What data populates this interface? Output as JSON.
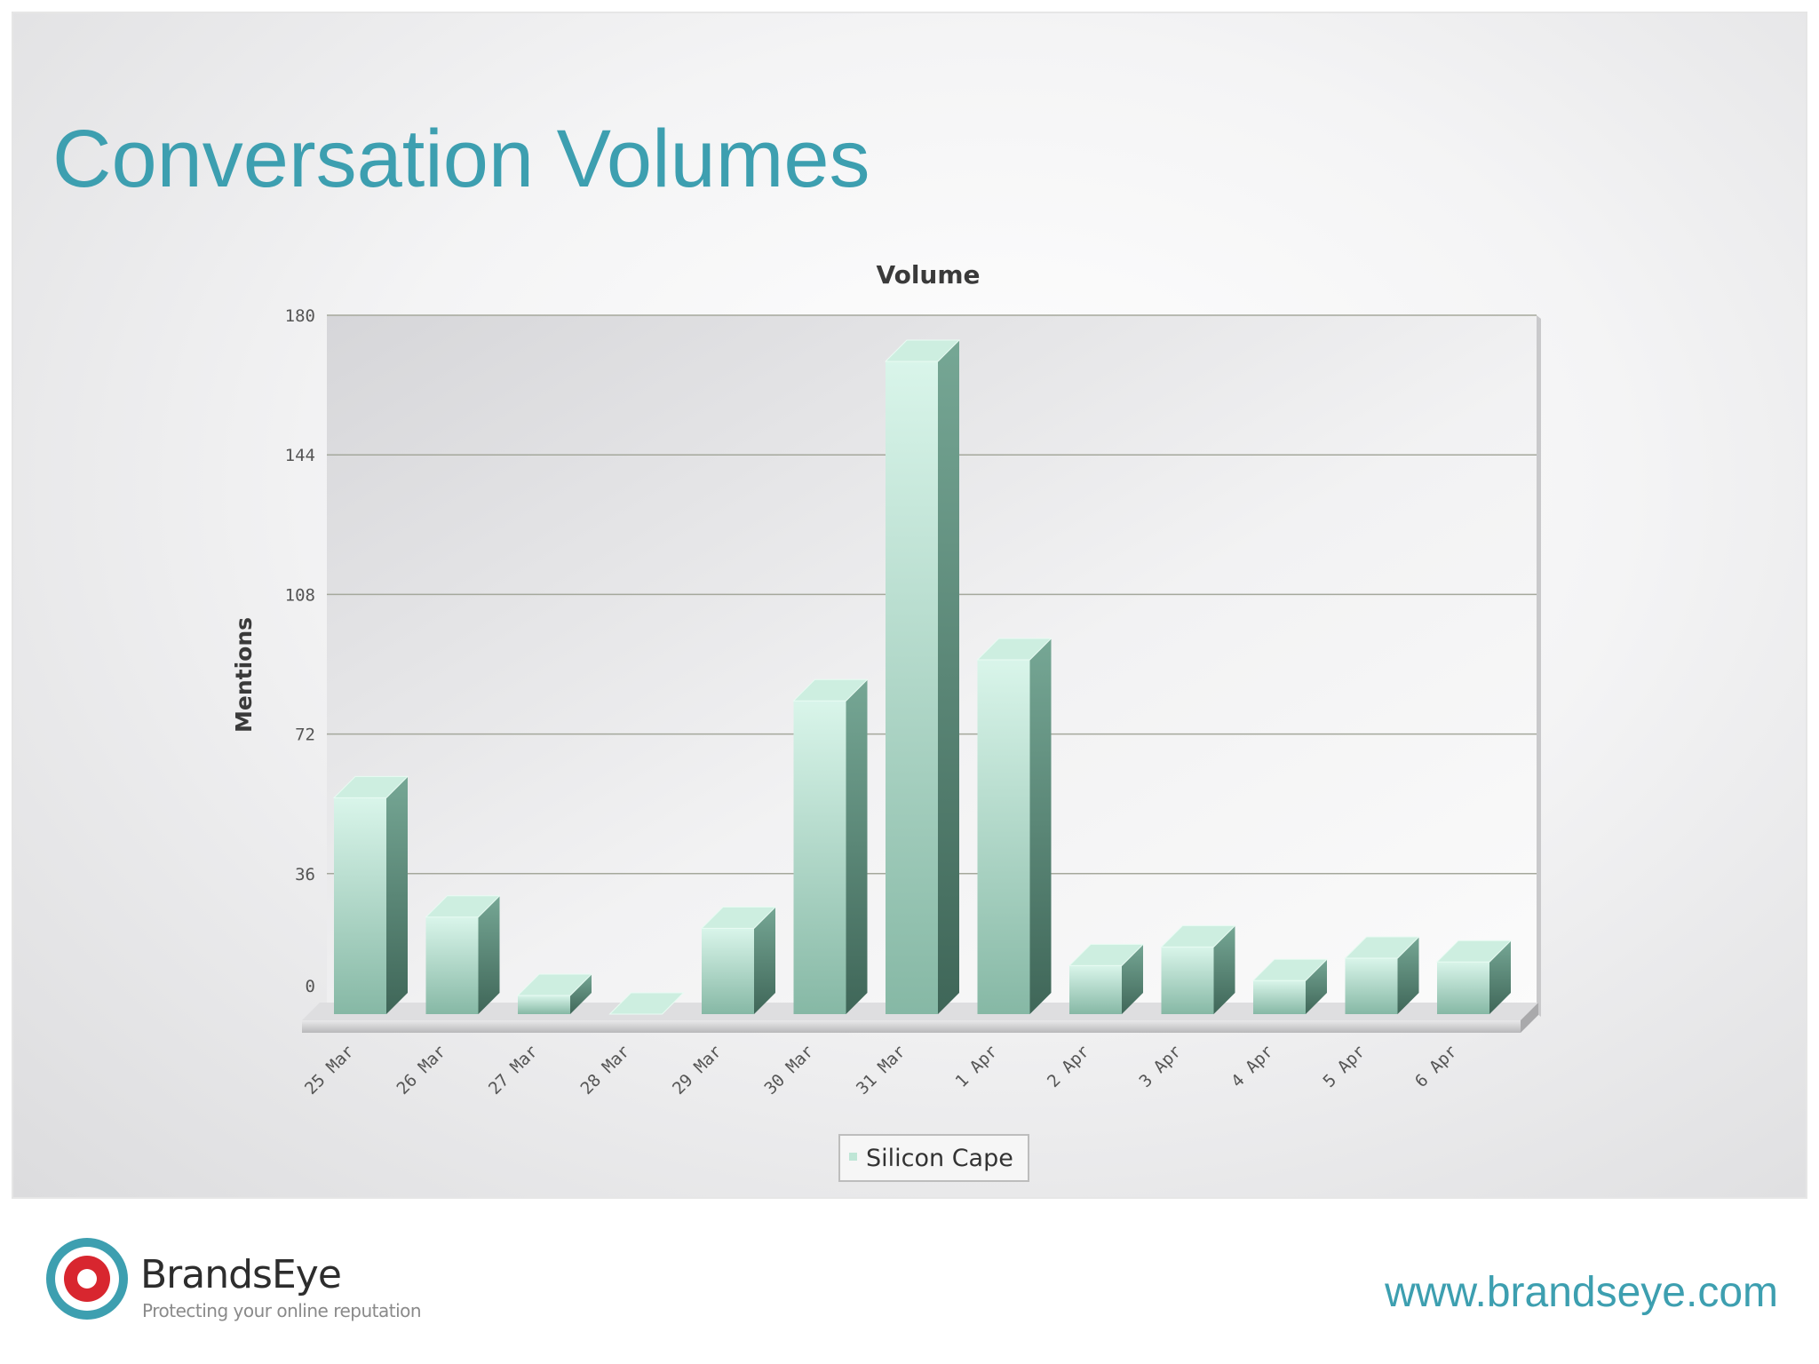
{
  "slide": {
    "title": "Conversation Volumes"
  },
  "footer": {
    "brand_name": "BrandsEye",
    "tagline": "Protecting your online reputation",
    "website": "www.brandseye.com"
  },
  "colors": {
    "accent": "#3d9fb0",
    "bar_front": "#a9d6c4",
    "bar_side": "#5e8d7c",
    "bar_top": "#d3f0e4",
    "logo_red": "#d8262f"
  },
  "chart_data": {
    "type": "bar",
    "style": "3d",
    "title": "Volume",
    "xlabel": "",
    "ylabel": "Mentions",
    "ylim": [
      0,
      180
    ],
    "yticks": [
      0,
      36,
      72,
      108,
      144,
      180
    ],
    "grid": true,
    "legend_position": "bottom-center",
    "categories": [
      "25 Mar",
      "26 Mar",
      "27 Mar",
      "28 Mar",
      "29 Mar",
      "30 Mar",
      "31 Mar",
      "1 Apr",
      "2 Apr",
      "3 Apr",
      "4 Apr",
      "5 Apr",
      "6 Apr"
    ],
    "series": [
      {
        "name": "Silicon Cape",
        "values": [
          58,
          26,
          5,
          0,
          23,
          84,
          175,
          95,
          13,
          18,
          9,
          15,
          14
        ]
      }
    ]
  }
}
